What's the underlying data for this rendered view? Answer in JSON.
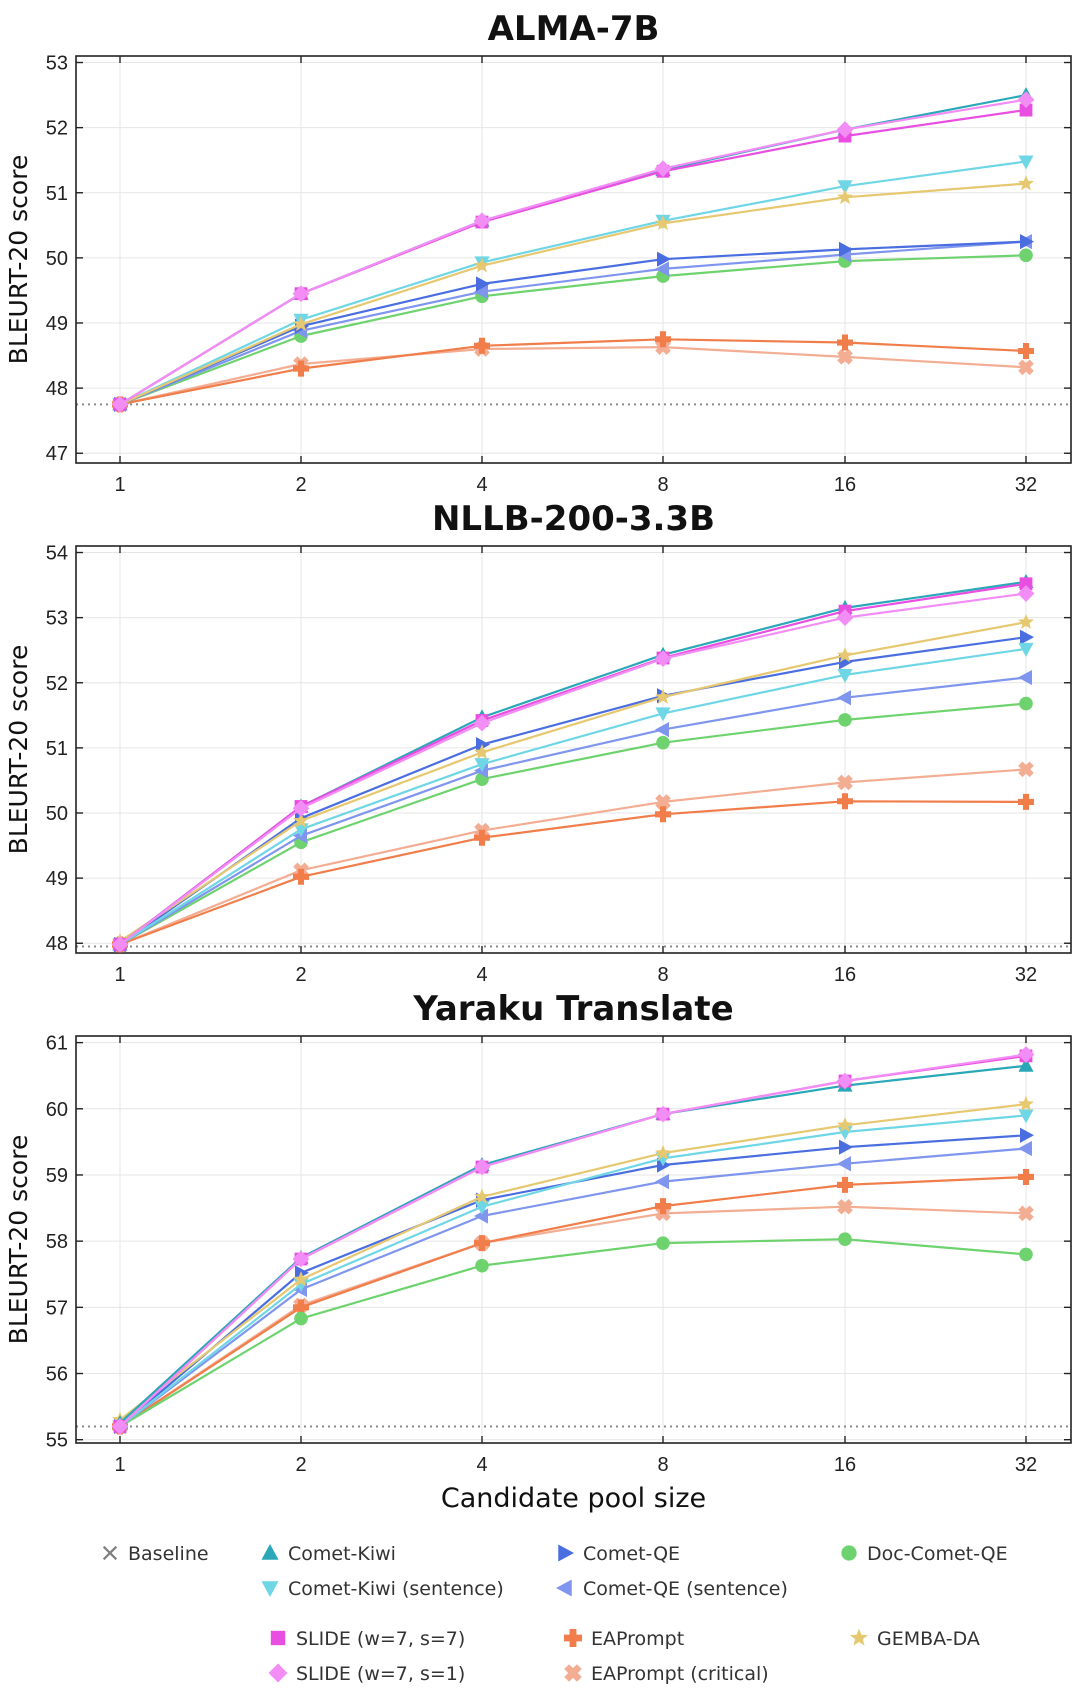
{
  "x_axis_label": "Candidate pool size",
  "y_axis_label": "BLEURT-20 score",
  "chart_data": [
    {
      "type": "line",
      "title": "ALMA-7B",
      "x": [
        1,
        2,
        4,
        8,
        16,
        32
      ],
      "x_scale": "log2",
      "xlabel": "",
      "ylabel": "BLEURT-20 score",
      "ylim": [
        46.85,
        53.1
      ],
      "yticks": [
        47,
        48,
        49,
        50,
        51,
        52,
        53
      ],
      "baseline": 47.75,
      "grid": true,
      "series": [
        {
          "name": "Baseline",
          "values": [
            47.75,
            null,
            null,
            null,
            null,
            null
          ]
        },
        {
          "name": "Comet-Kiwi",
          "values": [
            47.75,
            49.45,
            50.57,
            51.35,
            51.97,
            52.5
          ]
        },
        {
          "name": "Comet-Kiwi (sentence)",
          "values": [
            47.75,
            49.05,
            49.93,
            50.57,
            51.1,
            51.48
          ]
        },
        {
          "name": "Comet-QE",
          "values": [
            47.75,
            48.95,
            49.6,
            49.98,
            50.13,
            50.25
          ]
        },
        {
          "name": "Comet-QE (sentence)",
          "values": [
            47.75,
            48.88,
            49.48,
            49.83,
            50.05,
            50.25
          ]
        },
        {
          "name": "Doc-Comet-QE",
          "values": [
            47.75,
            48.8,
            49.41,
            49.72,
            49.95,
            50.04
          ]
        },
        {
          "name": "SLIDE (w=7, s=7)",
          "values": [
            47.75,
            49.45,
            50.55,
            51.33,
            51.87,
            52.27
          ]
        },
        {
          "name": "SLIDE (w=7, s=1)",
          "values": [
            47.75,
            49.45,
            50.57,
            51.37,
            51.97,
            52.43
          ]
        },
        {
          "name": "EAPrompt",
          "values": [
            47.75,
            48.3,
            48.65,
            48.75,
            48.7,
            48.57
          ]
        },
        {
          "name": "EAPrompt (critical)",
          "values": [
            47.75,
            48.37,
            48.6,
            48.63,
            48.48,
            48.32
          ]
        },
        {
          "name": "GEMBA-DA",
          "values": [
            47.75,
            48.98,
            49.88,
            50.53,
            50.93,
            51.14
          ]
        }
      ]
    },
    {
      "type": "line",
      "title": "NLLB-200-3.3B",
      "x": [
        1,
        2,
        4,
        8,
        16,
        32
      ],
      "x_scale": "log2",
      "xlabel": "",
      "ylabel": "BLEURT-20 score",
      "ylim": [
        47.85,
        54.1
      ],
      "yticks": [
        48,
        49,
        50,
        51,
        52,
        53,
        54
      ],
      "baseline": 47.95,
      "grid": true,
      "series": [
        {
          "name": "Baseline",
          "values": [
            47.95,
            null,
            null,
            null,
            null,
            null
          ]
        },
        {
          "name": "Comet-Kiwi",
          "values": [
            47.98,
            50.1,
            51.47,
            52.43,
            53.15,
            53.55
          ]
        },
        {
          "name": "Comet-Kiwi (sentence)",
          "values": [
            47.98,
            49.75,
            50.75,
            51.53,
            52.12,
            52.52
          ]
        },
        {
          "name": "Comet-QE",
          "values": [
            47.98,
            49.92,
            51.05,
            51.8,
            52.32,
            52.7
          ]
        },
        {
          "name": "Comet-QE (sentence)",
          "values": [
            47.98,
            49.65,
            50.65,
            51.28,
            51.77,
            52.08
          ]
        },
        {
          "name": "Doc-Comet-QE",
          "values": [
            47.98,
            49.55,
            50.52,
            51.08,
            51.43,
            51.68
          ]
        },
        {
          "name": "SLIDE (w=7, s=7)",
          "values": [
            47.98,
            50.1,
            51.42,
            52.38,
            53.1,
            53.52
          ]
        },
        {
          "name": "SLIDE (w=7, s=1)",
          "values": [
            47.98,
            50.07,
            51.38,
            52.37,
            53.0,
            53.37
          ]
        },
        {
          "name": "EAPrompt",
          "values": [
            47.98,
            49.02,
            49.62,
            49.98,
            50.18,
            50.17
          ]
        },
        {
          "name": "EAPrompt (critical)",
          "values": [
            47.98,
            49.12,
            49.73,
            50.17,
            50.47,
            50.67
          ]
        },
        {
          "name": "GEMBA-DA",
          "values": [
            48.03,
            49.88,
            50.93,
            51.78,
            52.42,
            52.93
          ]
        }
      ]
    },
    {
      "type": "line",
      "title": "Yaraku Translate",
      "x": [
        1,
        2,
        4,
        8,
        16,
        32
      ],
      "x_scale": "log2",
      "xlabel": "Candidate pool size",
      "ylabel": "BLEURT-20 score",
      "ylim": [
        54.95,
        61.1
      ],
      "yticks": [
        55,
        56,
        57,
        58,
        59,
        60,
        61
      ],
      "baseline": 55.2,
      "grid": true,
      "series": [
        {
          "name": "Baseline",
          "values": [
            55.2,
            null,
            null,
            null,
            null,
            null
          ]
        },
        {
          "name": "Comet-Kiwi",
          "values": [
            55.25,
            57.75,
            59.15,
            59.92,
            60.35,
            60.65
          ]
        },
        {
          "name": "Comet-Kiwi (sentence)",
          "values": [
            55.2,
            57.35,
            58.52,
            59.25,
            59.65,
            59.9
          ]
        },
        {
          "name": "Comet-QE",
          "values": [
            55.2,
            57.52,
            58.62,
            59.15,
            59.42,
            59.6
          ]
        },
        {
          "name": "Comet-QE (sentence)",
          "values": [
            55.2,
            57.27,
            58.38,
            58.9,
            59.17,
            59.4
          ]
        },
        {
          "name": "Doc-Comet-QE",
          "values": [
            55.2,
            56.83,
            57.63,
            57.97,
            58.03,
            57.8
          ]
        },
        {
          "name": "SLIDE (w=7, s=7)",
          "values": [
            55.2,
            57.73,
            59.12,
            59.92,
            60.42,
            60.8
          ]
        },
        {
          "name": "SLIDE (w=7, s=1)",
          "values": [
            55.2,
            57.73,
            59.12,
            59.92,
            60.42,
            60.82
          ]
        },
        {
          "name": "EAPrompt",
          "values": [
            55.2,
            57.0,
            57.97,
            58.53,
            58.85,
            58.97
          ]
        },
        {
          "name": "EAPrompt (critical)",
          "values": [
            55.2,
            57.03,
            57.97,
            58.42,
            58.52,
            58.42
          ]
        },
        {
          "name": "GEMBA-DA",
          "values": [
            55.3,
            57.42,
            58.67,
            59.33,
            59.75,
            60.07
          ]
        }
      ]
    }
  ],
  "legend": {
    "placement": "bottom",
    "items": [
      {
        "label": "Baseline",
        "marker": "x",
        "color": "#7f7f7f"
      },
      {
        "label": "Comet-Kiwi",
        "marker": "triangle-up",
        "color": "#2aa8b8"
      },
      {
        "label": "Comet-QE",
        "marker": "triangle-right",
        "color": "#4a6ee0"
      },
      {
        "label": "Doc-Comet-QE",
        "marker": "circle",
        "color": "#6ed36e"
      },
      {
        "label": "Comet-Kiwi (sentence)",
        "marker": "triangle-down",
        "color": "#6fd6e6"
      },
      {
        "label": "Comet-QE (sentence)",
        "marker": "triangle-left",
        "color": "#7f95ee"
      },
      {
        "label": "SLIDE (w=7, s=7)",
        "marker": "square",
        "color": "#e84fe0"
      },
      {
        "label": "EAPrompt",
        "marker": "plus",
        "color": "#f07d4a"
      },
      {
        "label": "GEMBA-DA",
        "marker": "star",
        "color": "#e6c870"
      },
      {
        "label": "SLIDE (w=7, s=1)",
        "marker": "diamond",
        "color": "#f28df5"
      },
      {
        "label": "EAPrompt (critical)",
        "marker": "x-thick",
        "color": "#f3ad92"
      }
    ]
  }
}
